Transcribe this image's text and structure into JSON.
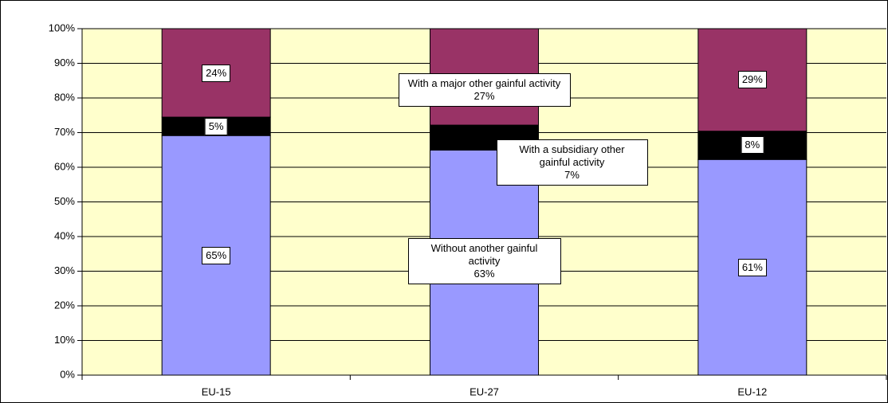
{
  "chart_data": {
    "type": "bar",
    "stacking": "percent",
    "categories": [
      "EU-15",
      "EU-27",
      "EU-12"
    ],
    "series": [
      {
        "name": "Without another gainful activity",
        "color": "#9999ff",
        "values": [
          65,
          63,
          61
        ],
        "value_labels": [
          "65%",
          "63%",
          "61%"
        ]
      },
      {
        "name": "With a subsidiary other gainful activity",
        "color": "#000000",
        "values": [
          5,
          7,
          8
        ],
        "value_labels": [
          "5%",
          "7%",
          "8%"
        ]
      },
      {
        "name": "With a major other gainful activity",
        "color": "#993366",
        "values": [
          24,
          27,
          29
        ],
        "value_labels": [
          "24%",
          "27%",
          "29%"
        ]
      }
    ],
    "ylim": [
      0,
      100
    ],
    "yticks": [
      {
        "value": 0,
        "label": "0%"
      },
      {
        "value": 10,
        "label": "10%"
      },
      {
        "value": 20,
        "label": "20%"
      },
      {
        "value": 30,
        "label": "30%"
      },
      {
        "value": 40,
        "label": "40%"
      },
      {
        "value": 50,
        "label": "50%"
      },
      {
        "value": 60,
        "label": "60%"
      },
      {
        "value": 70,
        "label": "70%"
      },
      {
        "value": 80,
        "label": "80%"
      },
      {
        "value": 90,
        "label": "90%"
      },
      {
        "value": 100,
        "label": "100%"
      }
    ],
    "grid": true,
    "plot_background": "#ffffcc"
  }
}
